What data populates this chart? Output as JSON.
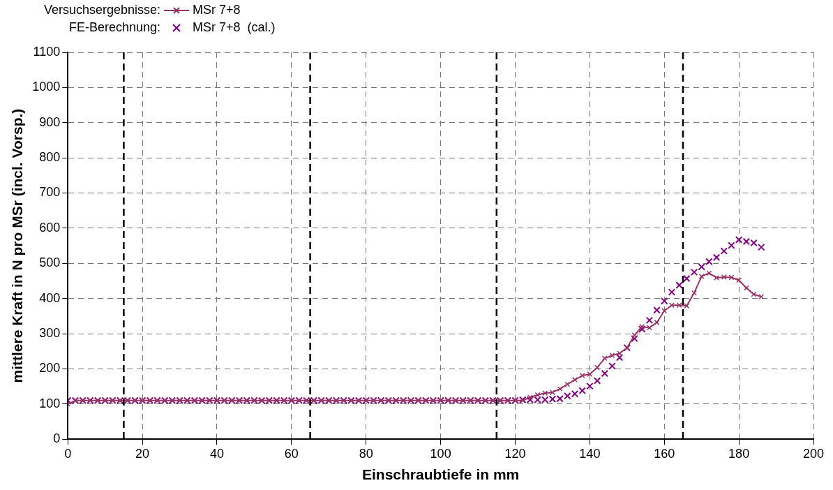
{
  "chart_data": {
    "type": "line",
    "xlabel": "Einschraubtiefe in mm",
    "ylabel": "mittlere Kraft in N pro MSr (incl. Vorsp.)",
    "annotations": [
      "Versuchsergebnisse:",
      "FE-Berechnung:"
    ],
    "x": [
      0,
      2,
      4,
      6,
      8,
      10,
      12,
      14,
      16,
      18,
      20,
      22,
      24,
      26,
      28,
      30,
      32,
      34,
      36,
      38,
      40,
      42,
      44,
      46,
      48,
      50,
      52,
      54,
      56,
      58,
      60,
      62,
      64,
      66,
      68,
      70,
      72,
      74,
      76,
      78,
      80,
      82,
      84,
      86,
      88,
      90,
      92,
      94,
      96,
      98,
      100,
      102,
      104,
      106,
      108,
      110,
      112,
      114,
      116,
      118,
      120,
      122,
      124,
      126,
      128,
      130,
      132,
      134,
      136,
      138,
      140,
      142,
      144,
      146,
      148,
      150,
      152,
      154,
      156,
      158,
      160,
      162,
      164,
      166,
      168,
      170,
      172,
      174,
      176,
      178,
      180,
      182,
      184,
      186
    ],
    "series": [
      {
        "name": "MSr 7+8",
        "type": "line",
        "color": "#993366",
        "marker": "cross",
        "line_style": "solid",
        "values": [
          100,
          110,
          110,
          110,
          110,
          110,
          110,
          110,
          110,
          110,
          110,
          110,
          110,
          110,
          110,
          110,
          110,
          110,
          110,
          110,
          110,
          110,
          110,
          110,
          110,
          110,
          110,
          110,
          110,
          110,
          110,
          110,
          110,
          110,
          110,
          110,
          110,
          110,
          110,
          110,
          110,
          110,
          110,
          110,
          110,
          110,
          110,
          110,
          110,
          110,
          110,
          110,
          110,
          110,
          110,
          110,
          110,
          110,
          110,
          110,
          110,
          110,
          119,
          126,
          131,
          133,
          143,
          156,
          169,
          181,
          185,
          204,
          230,
          238,
          244,
          260,
          296,
          320,
          317,
          332,
          365,
          381,
          381,
          379,
          416,
          463,
          472,
          459,
          461,
          460,
          452,
          430,
          412,
          405
        ]
      },
      {
        "name": "MSr 7+8  (cal.)",
        "type": "scatter",
        "color": "#800080",
        "marker": "cross",
        "values": [
          110,
          110,
          110,
          110,
          110,
          110,
          110,
          110,
          110,
          110,
          110,
          110,
          110,
          110,
          110,
          110,
          110,
          110,
          110,
          110,
          110,
          110,
          110,
          110,
          110,
          110,
          110,
          110,
          110,
          110,
          110,
          110,
          110,
          110,
          110,
          110,
          110,
          110,
          110,
          110,
          110,
          110,
          110,
          110,
          110,
          110,
          110,
          110,
          110,
          110,
          110,
          110,
          110,
          110,
          110,
          110,
          110,
          110,
          110,
          110,
          110,
          112,
          112,
          112,
          112,
          114,
          115,
          123,
          129,
          138,
          151,
          166,
          187,
          208,
          232,
          260,
          286,
          313,
          338,
          367,
          393,
          418,
          438,
          457,
          475,
          490,
          505,
          517,
          535,
          551,
          567,
          562,
          558,
          546
        ]
      }
    ],
    "xlim": [
      0,
      200
    ],
    "xticks": [
      0,
      20,
      40,
      60,
      80,
      100,
      120,
      140,
      160,
      180,
      200
    ],
    "ylim": [
      0,
      1100
    ],
    "yticks": [
      0,
      100,
      200,
      300,
      400,
      500,
      600,
      700,
      800,
      900,
      1000,
      1100
    ],
    "grid": true,
    "legend": "top left",
    "ref_lines": [
      {
        "axis": "x",
        "value": 15,
        "color": "#000000",
        "line_style": "dashed"
      },
      {
        "axis": "x",
        "value": 65,
        "color": "#000000",
        "line_style": "dashed"
      },
      {
        "axis": "x",
        "value": 115,
        "color": "#000000",
        "line_style": "dashed"
      },
      {
        "axis": "x",
        "value": 165,
        "color": "#000000",
        "line_style": "dashed"
      }
    ]
  }
}
